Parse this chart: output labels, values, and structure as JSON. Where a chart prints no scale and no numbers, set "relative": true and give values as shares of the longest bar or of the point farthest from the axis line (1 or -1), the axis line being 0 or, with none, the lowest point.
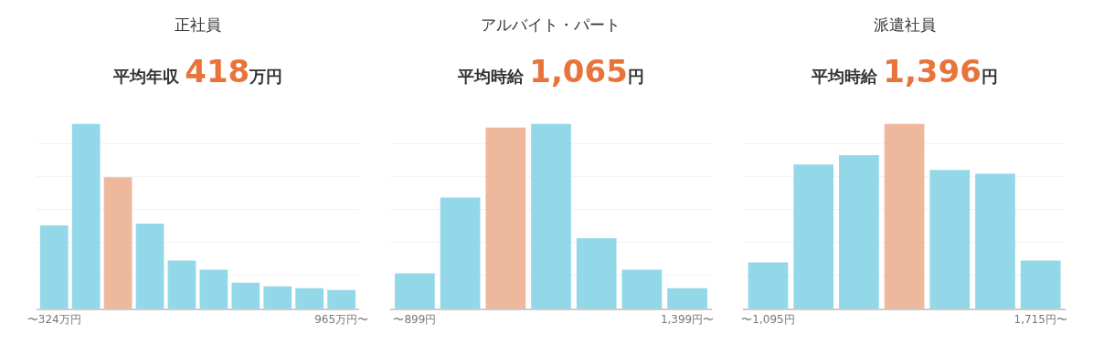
{
  "chart_data": [
    {
      "type": "bar",
      "title": "正社員",
      "subtitle": "平均年収 418万円",
      "relative": true,
      "grid": "y",
      "categories": [
        "〜324万円",
        null,
        null,
        null,
        null,
        null,
        null,
        null,
        null,
        "965万円〜"
      ],
      "values": [
        0.45,
        1,
        0.71,
        0.46,
        0.26,
        0.21,
        0.14,
        0.12,
        0.11,
        0.1
      ],
      "colors": [
        "#93d8e9",
        "#93d8e9",
        "#eeb89c",
        "#93d8e9",
        "#93d8e9",
        "#93d8e9",
        "#93d8e9",
        "#93d8e9",
        "#93d8e9",
        "#93d8e9"
      ]
    },
    {
      "type": "bar",
      "title": "アルバイト・パート",
      "subtitle": "平均時給 1,065円",
      "relative": true,
      "grid": "y",
      "categories": [
        "〜899円",
        null,
        null,
        null,
        null,
        null,
        "1,399円〜"
      ],
      "values": [
        0.19,
        0.6,
        0.98,
        1,
        0.38,
        0.21,
        0.11
      ],
      "colors": [
        "#93d8e9",
        "#93d8e9",
        "#eeb89c",
        "#93d8e9",
        "#93d8e9",
        "#93d8e9",
        "#93d8e9"
      ]
    },
    {
      "type": "bar",
      "title": "派遣社員",
      "subtitle": "平均時給 1,396円",
      "relative": true,
      "grid": "y",
      "categories": [
        "〜1,095円",
        null,
        null,
        null,
        null,
        null,
        "1,715円〜"
      ],
      "values": [
        0.25,
        0.78,
        0.83,
        1,
        0.75,
        0.73,
        0.26
      ],
      "colors": [
        "#93d8e9",
        "#93d8e9",
        "#93d8e9",
        "#eeb89c",
        "#93d8e9",
        "#93d8e9",
        "#93d8e9"
      ]
    }
  ]
}
